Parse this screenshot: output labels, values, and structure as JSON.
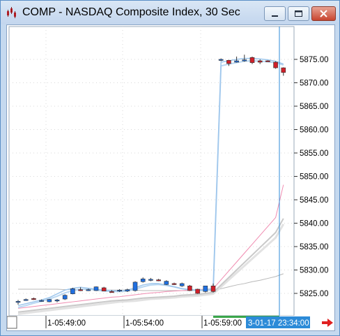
{
  "window": {
    "title": "COMP - NASDAQ Composite Index, 30 Sec",
    "icons": [
      "chart-app-icon",
      "minimize-icon",
      "maximize-icon",
      "close-icon"
    ]
  },
  "colors": {
    "up": "#1f6fe0",
    "down": "#d0202a",
    "ma_fast": "#9ec6ec",
    "ma_pink": "#f08bb0",
    "ma_gray": "#c9c9c9",
    "cursor": "#2c8bd8",
    "time_highlight_bg": "#2c8bd8",
    "green_bar": "#3aa64a"
  },
  "chart_data": {
    "type": "candlestick",
    "y_ticks": [
      "5875.00",
      "5870.00",
      "5865.00",
      "5860.00",
      "5855.00",
      "5850.00",
      "5845.00",
      "5840.00",
      "5835.00",
      "5830.00",
      "5825.00"
    ],
    "ylim": [
      5822.0,
      5879.0
    ],
    "x_ticks": [
      "1-05:49:00",
      "1-05:54:00",
      "1-05:59:00"
    ],
    "cursor_time_label": "3-01-17 23:34:00",
    "candles": [
      {
        "o": 5823.3,
        "h": 5823.6,
        "l": 5822.6,
        "c": 5823.3
      },
      {
        "o": 5823.6,
        "h": 5823.9,
        "l": 5823.4,
        "c": 5823.7
      },
      {
        "o": 5823.9,
        "h": 5824.1,
        "l": 5823.6,
        "c": 5823.8
      },
      {
        "o": 5823.4,
        "h": 5823.7,
        "l": 5823.2,
        "c": 5823.5
      },
      {
        "o": 5823.2,
        "h": 5823.8,
        "l": 5823.1,
        "c": 5823.7
      },
      {
        "o": 5823.4,
        "h": 5823.8,
        "l": 5823.1,
        "c": 5823.6
      },
      {
        "o": 5823.8,
        "h": 5824.8,
        "l": 5823.6,
        "c": 5824.6
      },
      {
        "o": 5824.9,
        "h": 5826.2,
        "l": 5824.8,
        "c": 5826.0
      },
      {
        "o": 5825.8,
        "h": 5826.3,
        "l": 5825.5,
        "c": 5825.6
      },
      {
        "o": 5825.8,
        "h": 5826.0,
        "l": 5825.5,
        "c": 5825.8
      },
      {
        "o": 5825.6,
        "h": 5826.5,
        "l": 5825.5,
        "c": 5826.4
      },
      {
        "o": 5826.2,
        "h": 5826.4,
        "l": 5825.5,
        "c": 5825.5
      },
      {
        "o": 5825.4,
        "h": 5825.7,
        "l": 5825.2,
        "c": 5825.3
      },
      {
        "o": 5825.6,
        "h": 5825.9,
        "l": 5825.3,
        "c": 5825.7
      },
      {
        "o": 5825.5,
        "h": 5826.0,
        "l": 5825.3,
        "c": 5825.8
      },
      {
        "o": 5825.6,
        "h": 5827.6,
        "l": 5825.4,
        "c": 5827.4
      },
      {
        "o": 5827.5,
        "h": 5828.4,
        "l": 5827.3,
        "c": 5828.1
      },
      {
        "o": 5827.8,
        "h": 5828.3,
        "l": 5827.6,
        "c": 5828.0
      },
      {
        "o": 5827.9,
        "h": 5828.1,
        "l": 5827.6,
        "c": 5827.8
      },
      {
        "o": 5826.9,
        "h": 5827.8,
        "l": 5826.8,
        "c": 5827.6
      },
      {
        "o": 5827.1,
        "h": 5827.3,
        "l": 5826.8,
        "c": 5826.9
      },
      {
        "o": 5826.6,
        "h": 5827.3,
        "l": 5826.4,
        "c": 5827.1
      },
      {
        "o": 5826.6,
        "h": 5826.8,
        "l": 5825.5,
        "c": 5825.6
      },
      {
        "o": 5825.9,
        "h": 5826.0,
        "l": 5824.9,
        "c": 5825.0
      },
      {
        "o": 5825.4,
        "h": 5826.6,
        "l": 5825.2,
        "c": 5826.6
      },
      {
        "o": 5826.6,
        "h": 5827.1,
        "l": 5825.2,
        "c": 5825.4
      },
      {
        "o": 5874.8,
        "h": 5875.2,
        "l": 5874.6,
        "c": 5875.0
      },
      {
        "o": 5874.8,
        "h": 5874.9,
        "l": 5873.6,
        "c": 5874.1
      },
      {
        "o": 5874.4,
        "h": 5875.6,
        "l": 5874.3,
        "c": 5874.7
      },
      {
        "o": 5874.8,
        "h": 5876.0,
        "l": 5874.5,
        "c": 5874.9
      },
      {
        "o": 5875.4,
        "h": 5875.6,
        "l": 5874.0,
        "c": 5874.3
      },
      {
        "o": 5874.7,
        "h": 5875.0,
        "l": 5874.0,
        "c": 5874.4
      },
      {
        "o": 5874.7,
        "h": 5874.8,
        "l": 5874.5,
        "c": 5874.6
      },
      {
        "o": 5874.4,
        "h": 5874.6,
        "l": 5873.0,
        "c": 5873.2
      },
      {
        "o": 5873.2,
        "h": 5873.3,
        "l": 5871.5,
        "c": 5872.2
      }
    ],
    "ma_blue": [
      5822.4,
      5822.8,
      5823.2,
      5823.6,
      5824.1,
      5824.9,
      5825.7,
      5826.1,
      5826.3,
      5826.1,
      5825.9,
      5825.7,
      5825.6,
      5825.5,
      5825.7,
      5826.2,
      5826.8,
      5827.1,
      5827.1,
      5826.8,
      5826.4,
      5826.0,
      5825.8,
      5825.7,
      5825.8,
      5826.0,
      5874.4,
      5874.7,
      5875.0,
      5875.2,
      5875.2,
      5875.1,
      5874.9,
      5874.6,
      5874.0
    ],
    "ma_blue2": [
      5822.0,
      5822.4,
      5822.9,
      5823.3,
      5823.8,
      5824.4,
      5825.1,
      5825.6,
      5825.9,
      5825.9,
      5825.7,
      5825.5,
      5825.4,
      5825.4,
      5825.5,
      5825.9,
      5826.4,
      5826.8,
      5826.9,
      5826.7,
      5826.4,
      5826.0,
      5825.8,
      5825.6,
      5825.6,
      5825.7,
      5873.6,
      5874.0,
      5874.3,
      5874.6,
      5874.7,
      5874.6,
      5874.5,
      5874.3,
      5873.8
    ],
    "ma_pink": [
      5821.8,
      5822.0,
      5822.2,
      5822.4,
      5822.6,
      5822.8,
      5823.0,
      5823.2,
      5823.4,
      5823.6,
      5823.8,
      5824.0,
      5824.2,
      5824.3,
      5824.5,
      5824.7,
      5824.9,
      5825.1,
      5825.2,
      5825.4,
      5825.5,
      5825.6,
      5825.7,
      5825.8,
      5825.9,
      5826.0,
      5827.9,
      5829.8,
      5831.7,
      5833.6,
      5835.5,
      5837.4,
      5839.3,
      5841.2,
      5848.2
    ],
    "ma_gray1": [
      5821.0,
      5821.2,
      5821.4,
      5821.6,
      5821.8,
      5822.0,
      5822.2,
      5822.4,
      5822.6,
      5822.8,
      5823.0,
      5823.2,
      5823.4,
      5823.5,
      5823.6,
      5823.8,
      5824.0,
      5824.1,
      5824.2,
      5824.3,
      5824.4,
      5824.6,
      5824.7,
      5824.8,
      5825.0,
      5825.2,
      5826.8,
      5828.4,
      5830.0,
      5831.6,
      5833.2,
      5834.8,
      5836.4,
      5838.0,
      5841.0
    ],
    "ma_gray2": [
      5820.6,
      5820.8,
      5821.0,
      5821.2,
      5821.4,
      5821.6,
      5821.8,
      5822.0,
      5822.2,
      5822.4,
      5822.6,
      5822.8,
      5823.0,
      5823.2,
      5823.3,
      5823.4,
      5823.6,
      5823.8,
      5823.9,
      5824.0,
      5824.1,
      5824.3,
      5824.4,
      5824.5,
      5824.7,
      5824.9,
      5826.4,
      5827.9,
      5829.4,
      5830.9,
      5832.4,
      5833.9,
      5835.4,
      5836.9,
      5839.8
    ],
    "ma_slow": [
      5825.9,
      5825.9,
      5825.9,
      5825.9,
      5825.9,
      5825.9,
      5825.8,
      5825.8,
      5825.8,
      5825.8,
      5825.8,
      5825.7,
      5825.7,
      5825.7,
      5825.7,
      5825.7,
      5825.6,
      5825.6,
      5825.6,
      5825.6,
      5825.6,
      5825.6,
      5825.6,
      5825.6,
      5825.6,
      5825.6,
      5826.0,
      5826.4,
      5826.8,
      5827.1,
      5827.5,
      5827.8,
      5828.2,
      5828.6,
      5829.2
    ]
  }
}
